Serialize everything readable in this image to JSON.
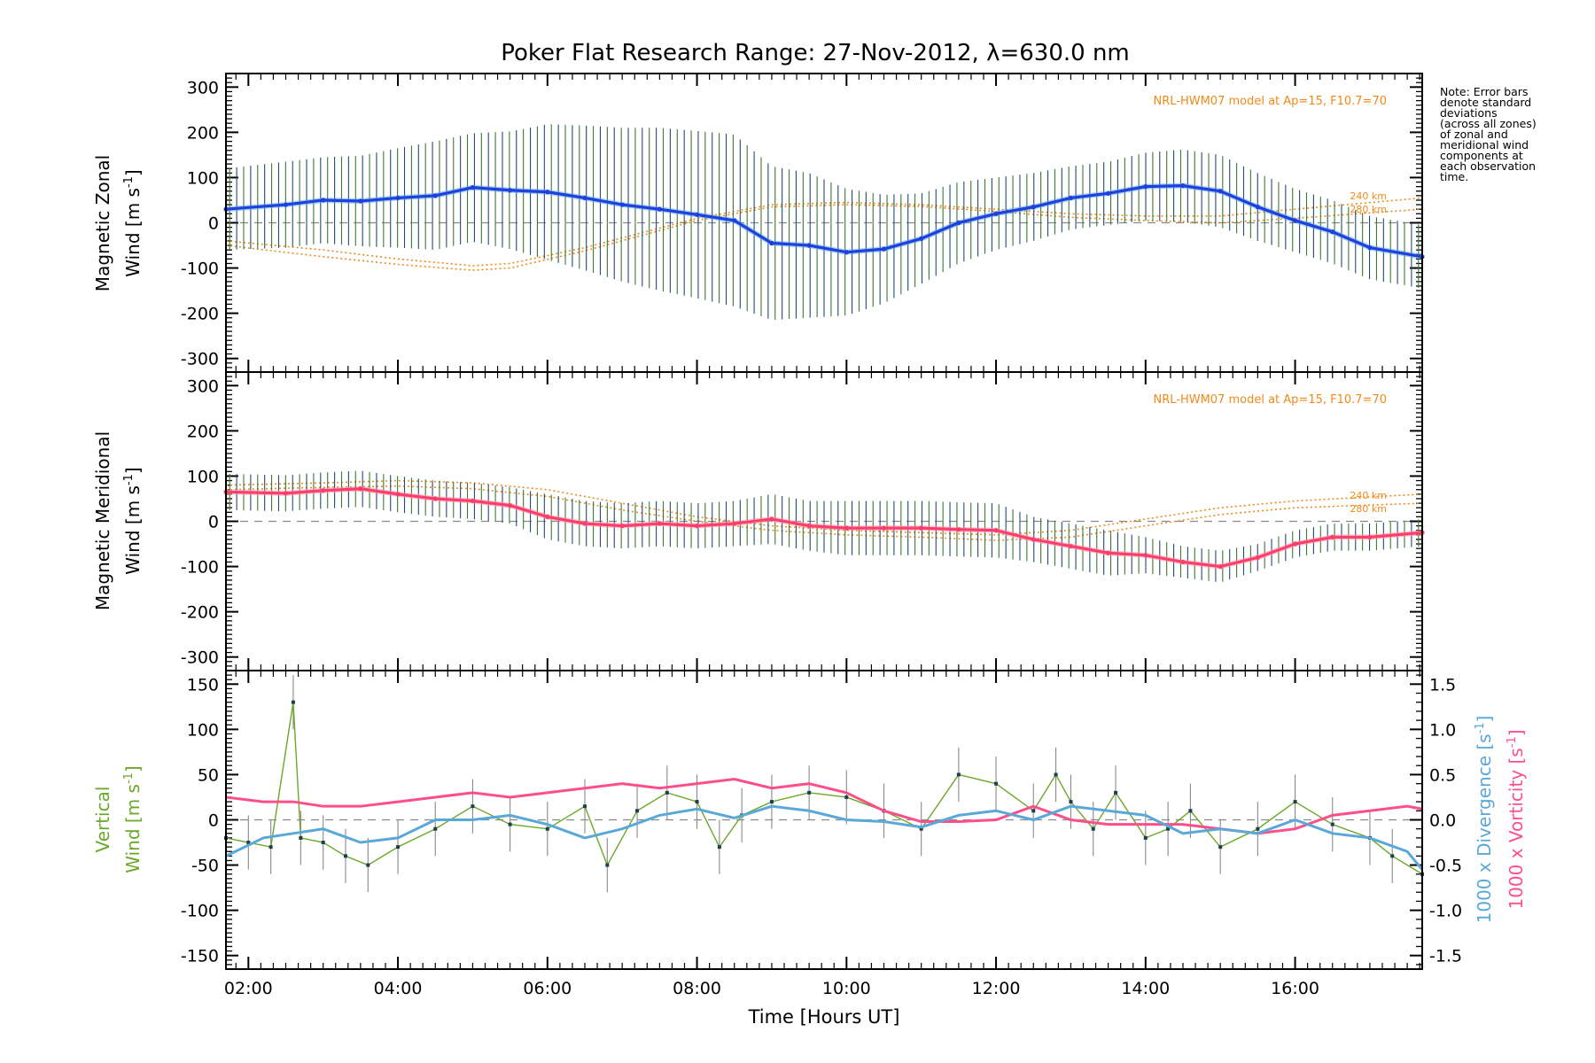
{
  "figure": {
    "title": "Poker Flat Research Range: 27-Nov-2012, λ=630.0 nm",
    "xlabel": "Time [Hours UT]",
    "note": [
      "Note: Error bars",
      "denote standard",
      "deviations",
      "(across all zones)",
      "of zonal and",
      "meridional wind",
      "components at",
      "each observation",
      "time."
    ],
    "colors": {
      "zonal": "#1f3fe0",
      "zonal_light": "#5aa8e6",
      "meridional": "#ff3d6e",
      "vertical": "#6aa82a",
      "divergence": "#5aa8d8",
      "vorticity": "#ff4f8a",
      "model": "#f08a1a",
      "errorbar": "#1d4f6e"
    }
  },
  "chart_data": [
    {
      "type": "line",
      "panel": "zonal",
      "ylabel_line1": "Magnetic Zonal",
      "ylabel_line2": "Wind [m s",
      "ylabel_sup": "-1",
      "ylabel_close": "]",
      "ylim": [
        -330,
        330
      ],
      "yticks": [
        -300,
        -200,
        -100,
        0,
        100,
        200,
        300
      ],
      "xlim": [
        1.7,
        17.7
      ],
      "xticks": [
        "02:00",
        "04:00",
        "06:00",
        "08:00",
        "10:00",
        "12:00",
        "14:00",
        "16:00"
      ],
      "model_label": "NRL-HWM07 model at Ap=15, F10.7=70",
      "model_alt_labels": [
        "240 km",
        "280 km"
      ],
      "series": [
        {
          "x": [
            1.7,
            2.5,
            3.0,
            3.5,
            4.0,
            4.5,
            5.0,
            5.5,
            6.0,
            6.5,
            7.0,
            7.5,
            8.0,
            8.5,
            9.0,
            9.5,
            10.0,
            10.5,
            11.0,
            11.5,
            12.0,
            12.5,
            13.0,
            13.5,
            14.0,
            14.5,
            15.0,
            15.5,
            16.0,
            16.5,
            17.0,
            17.7
          ],
          "y": [
            30,
            40,
            50,
            48,
            55,
            60,
            78,
            72,
            68,
            55,
            40,
            30,
            18,
            5,
            -45,
            -50,
            -65,
            -58,
            -35,
            0,
            20,
            35,
            55,
            65,
            80,
            82,
            70,
            35,
            5,
            -20,
            -55,
            -75
          ],
          "err": [
            90,
            95,
            95,
            100,
            110,
            120,
            120,
            130,
            150,
            160,
            170,
            180,
            185,
            190,
            170,
            160,
            140,
            120,
            100,
            90,
            80,
            75,
            70,
            70,
            75,
            80,
            80,
            75,
            70,
            70,
            70,
            70
          ]
        }
      ],
      "model": [
        {
          "x": [
            1.7,
            3.0,
            4.0,
            5.0,
            5.5,
            6.5,
            8.0,
            9.0,
            10.0,
            11.0,
            12.0,
            13.0,
            14.0,
            15.0,
            16.0,
            17.7
          ],
          "y": [
            -40,
            -60,
            -80,
            -95,
            -90,
            -55,
            10,
            40,
            45,
            40,
            30,
            20,
            15,
            15,
            30,
            55
          ]
        },
        {
          "x": [
            1.7,
            3.0,
            4.0,
            5.0,
            5.5,
            6.5,
            8.0,
            9.0,
            10.0,
            11.0,
            12.0,
            13.0,
            14.0,
            15.0,
            16.0,
            17.7
          ],
          "y": [
            -50,
            -75,
            -92,
            -105,
            -100,
            -62,
            5,
            35,
            40,
            36,
            25,
            12,
            5,
            0,
            10,
            30
          ]
        }
      ]
    },
    {
      "type": "line",
      "panel": "meridional",
      "ylabel_line1": "Magnetic Meridional",
      "ylabel_line2": "Wind [m s",
      "ylabel_sup": "-1",
      "ylabel_close": "]",
      "ylim": [
        -330,
        330
      ],
      "yticks": [
        -300,
        -200,
        -100,
        0,
        100,
        200,
        300
      ],
      "xlim": [
        1.7,
        17.7
      ],
      "model_label": "NRL-HWM07 model at Ap=15, F10.7=70",
      "model_alt_labels": [
        "240 km",
        "280 km"
      ],
      "series": [
        {
          "x": [
            1.7,
            2.5,
            3.0,
            3.5,
            4.0,
            4.5,
            5.0,
            5.5,
            6.0,
            6.5,
            7.0,
            7.5,
            8.0,
            8.5,
            9.0,
            9.5,
            10.0,
            10.5,
            11.0,
            11.5,
            12.0,
            12.5,
            13.0,
            13.5,
            14.0,
            14.5,
            15.0,
            15.5,
            16.0,
            16.5,
            17.0,
            17.7
          ],
          "y": [
            65,
            62,
            68,
            72,
            60,
            50,
            45,
            35,
            10,
            -5,
            -10,
            -5,
            -10,
            -5,
            5,
            -10,
            -15,
            -15,
            -15,
            -18,
            -20,
            -40,
            -55,
            -70,
            -75,
            -90,
            -100,
            -80,
            -50,
            -35,
            -35,
            -25
          ],
          "err": [
            40,
            40,
            40,
            40,
            40,
            40,
            40,
            40,
            50,
            50,
            50,
            50,
            50,
            50,
            55,
            55,
            60,
            60,
            60,
            60,
            60,
            50,
            50,
            50,
            40,
            35,
            35,
            30,
            30,
            30,
            30,
            30
          ]
        }
      ],
      "model": [
        {
          "x": [
            1.7,
            3.0,
            4.0,
            5.0,
            6.0,
            7.0,
            8.0,
            9.0,
            10.0,
            11.0,
            12.0,
            13.0,
            14.0,
            15.0,
            16.0,
            17.7
          ],
          "y": [
            80,
            85,
            90,
            85,
            70,
            40,
            10,
            -10,
            -20,
            -25,
            -30,
            -20,
            5,
            30,
            45,
            60
          ]
        },
        {
          "x": [
            1.7,
            3.0,
            4.0,
            5.0,
            6.0,
            7.0,
            8.0,
            9.0,
            10.0,
            11.0,
            12.0,
            13.0,
            14.0,
            15.0,
            16.0,
            17.7
          ],
          "y": [
            70,
            75,
            78,
            72,
            55,
            25,
            0,
            -20,
            -30,
            -35,
            -42,
            -35,
            -10,
            15,
            30,
            40
          ]
        }
      ]
    },
    {
      "type": "line",
      "panel": "vertical",
      "ylabel_line1": "Vertical",
      "ylabel_line2": "Wind [m s",
      "ylabel_sup": "-1",
      "ylabel_close": "]",
      "ylim": [
        -165,
        165
      ],
      "yticks": [
        -150,
        -100,
        -50,
        0,
        50,
        100,
        150
      ],
      "y2label_div": "1000 x Divergence [s",
      "y2label_vort": "1000 x Vorticity [s",
      "y2label_sup": "-1",
      "y2label_close": "]",
      "y2lim": [
        -1.65,
        1.65
      ],
      "y2ticks": [
        "-1.5",
        "-1.0",
        "-0.5",
        "0.0",
        "0.5",
        "1.0",
        "1.5"
      ],
      "xlim": [
        1.7,
        17.7
      ],
      "series": [
        {
          "name": "vertical",
          "x": [
            1.7,
            2.0,
            2.3,
            2.6,
            2.7,
            3.0,
            3.3,
            3.6,
            4.0,
            4.5,
            5.0,
            5.5,
            6.0,
            6.5,
            6.8,
            7.2,
            7.6,
            8.0,
            8.3,
            8.6,
            9.0,
            9.5,
            10.0,
            10.5,
            11.0,
            11.5,
            12.0,
            12.5,
            12.8,
            13.0,
            13.3,
            13.6,
            14.0,
            14.3,
            14.6,
            15.0,
            15.5,
            16.0,
            16.5,
            17.0,
            17.3,
            17.7
          ],
          "y": [
            -20,
            -25,
            -30,
            130,
            -20,
            -25,
            -40,
            -50,
            -30,
            -10,
            15,
            -5,
            -10,
            15,
            -50,
            10,
            30,
            20,
            -30,
            5,
            20,
            30,
            25,
            10,
            -10,
            50,
            40,
            10,
            50,
            20,
            -10,
            30,
            -20,
            -10,
            10,
            -30,
            -10,
            20,
            -5,
            -20,
            -40,
            -60
          ]
        },
        {
          "name": "divergence",
          "x": [
            1.7,
            2.2,
            2.6,
            3.0,
            3.5,
            4.0,
            4.5,
            5.0,
            5.5,
            6.0,
            6.5,
            7.0,
            7.5,
            8.0,
            8.5,
            9.0,
            9.5,
            10.0,
            10.5,
            11.0,
            11.5,
            12.0,
            12.5,
            13.0,
            13.5,
            14.0,
            14.5,
            15.0,
            15.5,
            16.0,
            16.5,
            17.0,
            17.5,
            17.7
          ],
          "y": [
            -0.4,
            -0.2,
            -0.15,
            -0.1,
            -0.25,
            -0.2,
            0.0,
            0.0,
            0.05,
            -0.05,
            -0.2,
            -0.1,
            0.05,
            0.12,
            0.02,
            0.15,
            0.1,
            0.0,
            -0.02,
            -0.08,
            0.05,
            0.1,
            0.0,
            0.15,
            0.1,
            0.05,
            -0.15,
            -0.1,
            -0.15,
            0.0,
            -0.15,
            -0.2,
            -0.35,
            -0.55
          ]
        },
        {
          "name": "vorticity",
          "x": [
            1.7,
            2.2,
            2.6,
            3.0,
            3.5,
            4.0,
            4.5,
            5.0,
            5.5,
            6.0,
            6.5,
            7.0,
            7.5,
            8.0,
            8.5,
            9.0,
            9.5,
            10.0,
            10.5,
            11.0,
            11.5,
            12.0,
            12.5,
            13.0,
            13.5,
            14.0,
            14.5,
            15.0,
            15.5,
            16.0,
            16.5,
            17.0,
            17.5,
            17.7
          ],
          "y": [
            0.25,
            0.2,
            0.2,
            0.15,
            0.15,
            0.2,
            0.25,
            0.3,
            0.25,
            0.3,
            0.35,
            0.4,
            0.35,
            0.4,
            0.45,
            0.35,
            0.4,
            0.3,
            0.1,
            -0.02,
            -0.02,
            0.0,
            0.15,
            0.0,
            -0.05,
            -0.05,
            -0.05,
            -0.1,
            -0.15,
            -0.1,
            0.05,
            0.1,
            0.15,
            0.12
          ]
        }
      ]
    }
  ]
}
